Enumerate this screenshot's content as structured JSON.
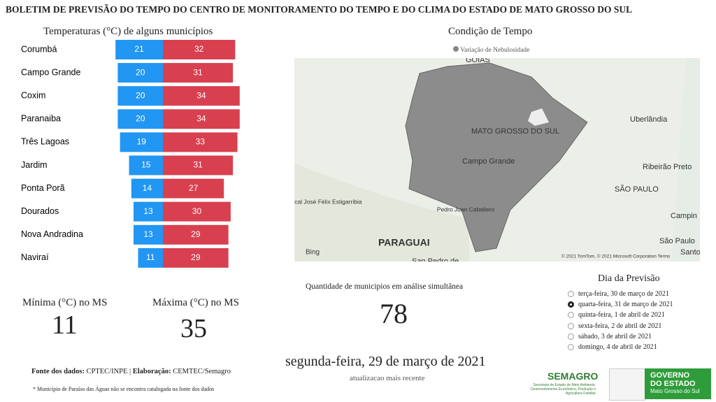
{
  "header": {
    "title": "BOLETIM DE PREVISÃO DO TEMPO DO CENTRO DE MONITORAMENTO DO TEMPO E DO CLIMA DO ESTADO DE MATO GROSSO DO SUL"
  },
  "chart_data": {
    "type": "bar",
    "title": "Temperaturas (°C) de alguns municípios",
    "categories": [
      "Corumbá",
      "Campo Grande",
      "Coxim",
      "Paranaiba",
      "Três Lagoas",
      "Jardim",
      "Ponta Porã",
      "Dourados",
      "Nova Andradina",
      "Naviraí"
    ],
    "series": [
      {
        "color": "#2196f3",
        "values": [
          21,
          20,
          20,
          20,
          19,
          15,
          14,
          13,
          13,
          11
        ]
      },
      {
        "color": "#d9404f",
        "values": [
          32,
          31,
          34,
          34,
          33,
          31,
          27,
          30,
          29,
          29
        ]
      }
    ]
  },
  "stats": {
    "min_label": "Mínima (°C) no MS",
    "min_value": 11,
    "max_label": "Máxima (°C) no MS",
    "max_value": 35
  },
  "source": {
    "parts": [
      "Fonte dos dados:",
      " CPTEC/INPE | ",
      "Elaboração:",
      " CEMTEC/Semagro"
    ],
    "note": "* Município de Paraíso das Águas não se encontra catalogada na fonte dos dados"
  },
  "map": {
    "title": "Condição de Tempo",
    "legend": "Variação de Nebulosidade",
    "labels": [
      "GOIÁS",
      "MATO GROSSO DO SUL",
      "Campo Grande",
      "Uberlândia",
      "Ribeirão Preto",
      "SÃO PAULO",
      "Mariscal José Félix Estigarribia",
      "Pedro Juan Caballero",
      "PARAGUAI",
      "Campin",
      "São Paulo",
      "Santo",
      "San Pedro de"
    ],
    "bing": "Bing",
    "attribution": "© 2021 TomTom, © 2021 Microsoft Corporation Terms"
  },
  "count": {
    "label": "Quantidade de municipios em análise simultânea",
    "value": 78
  },
  "date": {
    "value": "segunda-feira, 29 de março de 2021",
    "caption": "atualizacao mais recente"
  },
  "forecast": {
    "title": "Dia da Previsão",
    "options": [
      "terça-feira, 30 de março de 2021",
      "quarta-feira, 31 de março de 2021",
      "quinta-feira, 1 de abril de 2021",
      "sexta-feira, 2 de abril de 2021",
      "sábado, 3 de abril de 2021",
      "domingo, 4 de abril de 2021"
    ],
    "selected": 1
  },
  "logos": {
    "semagro": "SEMAGRO",
    "semagro_sub": "Secretaria de Estado de Meio Ambiente, Desenvolvimento Econômico, Produção e Agricultura Familiar",
    "gov": "GOVERNO DO ESTADO",
    "gov_sub": "Mato Grosso do Sul"
  }
}
